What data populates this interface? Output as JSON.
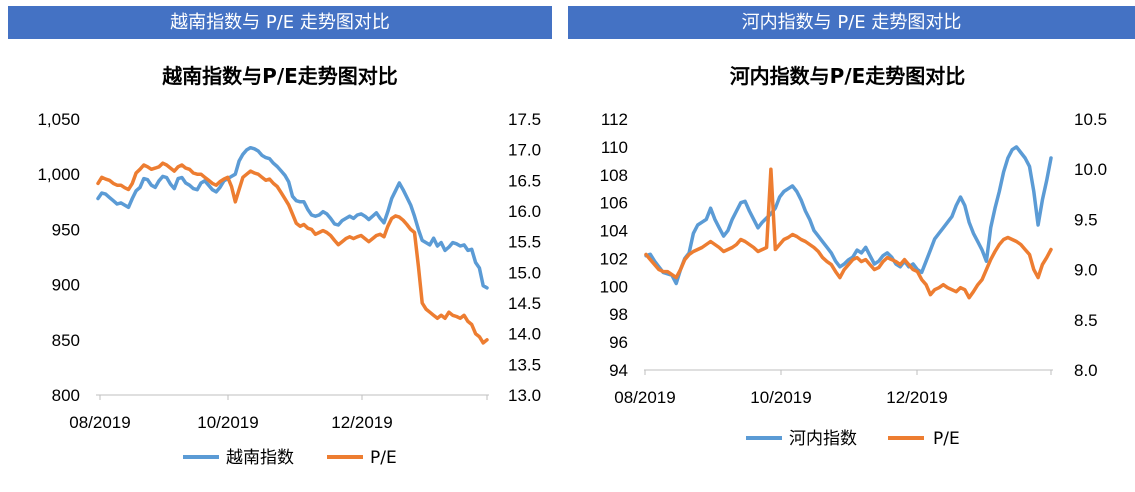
{
  "left_panel": {
    "banner": "越南指数与 P/E 走势图对比"
  },
  "right_panel": {
    "banner": "河内指数与 P/E 走势图对比"
  },
  "chart_data": [
    {
      "type": "line",
      "title": "越南指数与P/E走势图对比",
      "x_ticks": [
        "08/2019",
        "10/2019",
        "12/2019"
      ],
      "y_left": {
        "lim": [
          800,
          1050
        ],
        "ticks": [
          "800",
          "850",
          "900",
          "950",
          "1,000",
          "1,050"
        ]
      },
      "y_right": {
        "lim": [
          13.0,
          17.5
        ],
        "ticks": [
          "13.0",
          "13.5",
          "14.0",
          "14.5",
          "15.0",
          "15.5",
          "16.0",
          "16.5",
          "17.0",
          "17.5"
        ]
      },
      "legend": "bottom",
      "series": [
        {
          "name": "越南指数",
          "axis": "left",
          "color": "#5b9bd5",
          "values": [
            978,
            983,
            982,
            979,
            976,
            973,
            974,
            972,
            970,
            978,
            985,
            988,
            996,
            995,
            990,
            988,
            994,
            998,
            997,
            991,
            987,
            996,
            997,
            992,
            990,
            987,
            986,
            992,
            994,
            990,
            986,
            984,
            988,
            994,
            996,
            998,
            1000,
            1012,
            1018,
            1022,
            1024,
            1023,
            1021,
            1017,
            1015,
            1014,
            1010,
            1007,
            1003,
            999,
            993,
            980,
            976,
            975,
            975,
            968,
            963,
            962,
            963,
            966,
            964,
            960,
            955,
            954,
            958,
            960,
            962,
            960,
            963,
            964,
            962,
            959,
            962,
            965,
            960,
            956,
            966,
            978,
            985,
            992,
            986,
            979,
            972,
            962,
            950,
            940,
            938,
            936,
            942,
            935,
            938,
            931,
            934,
            938,
            937,
            935,
            936,
            931,
            932,
            920,
            915,
            899,
            897
          ]
        },
        {
          "name": "P/E",
          "axis": "right",
          "color": "#ed7d31",
          "values": [
            16.45,
            16.55,
            16.52,
            16.5,
            16.45,
            16.42,
            16.42,
            16.38,
            16.35,
            16.45,
            16.62,
            16.68,
            16.75,
            16.72,
            16.68,
            16.7,
            16.72,
            16.78,
            16.75,
            16.7,
            16.65,
            16.72,
            16.75,
            16.7,
            16.68,
            16.62,
            16.6,
            16.6,
            16.55,
            16.5,
            16.45,
            16.42,
            16.48,
            16.52,
            16.55,
            16.4,
            16.15,
            16.35,
            16.55,
            16.6,
            16.65,
            16.62,
            16.6,
            16.55,
            16.5,
            16.52,
            16.45,
            16.4,
            16.3,
            16.2,
            16.1,
            15.95,
            15.8,
            15.75,
            15.78,
            15.72,
            15.7,
            15.62,
            15.65,
            15.68,
            15.65,
            15.6,
            15.52,
            15.45,
            15.5,
            15.55,
            15.58,
            15.55,
            15.58,
            15.6,
            15.55,
            15.5,
            15.55,
            15.6,
            15.62,
            15.58,
            15.75,
            15.88,
            15.92,
            15.9,
            15.85,
            15.78,
            15.7,
            15.65,
            15.1,
            14.5,
            14.4,
            14.35,
            14.3,
            14.25,
            14.3,
            14.25,
            14.35,
            14.3,
            14.28,
            14.25,
            14.3,
            14.2,
            14.15,
            14.0,
            13.95,
            13.85,
            13.9
          ]
        }
      ]
    },
    {
      "type": "line",
      "title": "河内指数与P/E走势图对比",
      "x_ticks": [
        "08/2019",
        "10/2019",
        "12/2019"
      ],
      "y_left": {
        "lim": [
          94,
          112
        ],
        "ticks": [
          "94",
          "96",
          "98",
          "100",
          "102",
          "104",
          "106",
          "108",
          "110",
          "112"
        ]
      },
      "y_right": {
        "lim": [
          8.0,
          10.5
        ],
        "ticks": [
          "8.0",
          "8.5",
          "9.0",
          "9.5",
          "10.0",
          "10.5"
        ]
      },
      "legend": "bottom",
      "series": [
        {
          "name": "河内指数",
          "axis": "left",
          "color": "#5b9bd5",
          "values": [
            102.2,
            102.3,
            101.8,
            101.4,
            101.0,
            100.9,
            100.8,
            100.2,
            101.2,
            102.0,
            102.4,
            103.8,
            104.4,
            104.6,
            104.8,
            105.6,
            104.8,
            104.2,
            103.6,
            104.0,
            104.8,
            105.4,
            106.0,
            106.1,
            105.4,
            104.8,
            104.2,
            104.6,
            104.9,
            105.2,
            105.6,
            106.4,
            106.8,
            107.0,
            107.2,
            106.8,
            106.2,
            105.4,
            104.8,
            104.0,
            103.6,
            103.2,
            102.8,
            102.4,
            101.8,
            101.4,
            101.6,
            101.9,
            102.1,
            102.6,
            102.4,
            102.8,
            102.2,
            101.6,
            101.8,
            102.2,
            102.4,
            102.1,
            101.6,
            101.4,
            101.8,
            101.4,
            101.6,
            101.2,
            101.0,
            101.8,
            102.6,
            103.4,
            103.8,
            104.2,
            104.6,
            105.0,
            105.8,
            106.4,
            105.8,
            104.6,
            103.8,
            103.2,
            102.6,
            101.8,
            104.2,
            105.6,
            106.8,
            108.2,
            109.2,
            109.8,
            110.0,
            109.6,
            109.2,
            108.6,
            106.8,
            104.4,
            106.2,
            107.6,
            109.2
          ]
        },
        {
          "name": "P/E",
          "axis": "right",
          "color": "#ed7d31",
          "values": [
            9.15,
            9.1,
            9.05,
            9.0,
            8.98,
            8.98,
            8.95,
            8.92,
            9.0,
            9.1,
            9.15,
            9.18,
            9.2,
            9.22,
            9.25,
            9.28,
            9.25,
            9.22,
            9.18,
            9.2,
            9.22,
            9.25,
            9.3,
            9.28,
            9.25,
            9.22,
            9.18,
            9.2,
            9.22,
            10.0,
            9.2,
            9.25,
            9.3,
            9.32,
            9.35,
            9.33,
            9.3,
            9.28,
            9.25,
            9.22,
            9.18,
            9.12,
            9.08,
            9.05,
            8.98,
            8.92,
            9.0,
            9.05,
            9.1,
            9.12,
            9.08,
            9.1,
            9.05,
            9.0,
            9.02,
            9.08,
            9.12,
            9.1,
            9.08,
            9.05,
            9.1,
            9.05,
            9.0,
            8.98,
            8.9,
            8.85,
            8.75,
            8.8,
            8.82,
            8.85,
            8.82,
            8.8,
            8.78,
            8.82,
            8.8,
            8.72,
            8.78,
            8.85,
            8.9,
            9.0,
            9.1,
            9.18,
            9.25,
            9.3,
            9.32,
            9.3,
            9.28,
            9.25,
            9.2,
            9.15,
            9.0,
            8.92,
            9.05,
            9.12,
            9.2
          ]
        }
      ]
    }
  ]
}
